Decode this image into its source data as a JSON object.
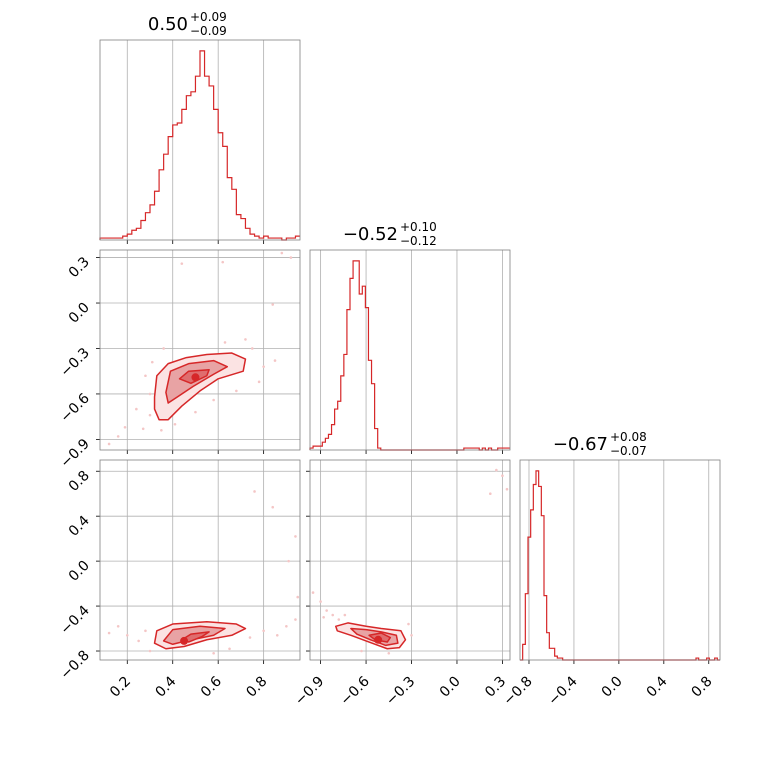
{
  "colors": {
    "main": "#d62728",
    "fill": "#e8a3a4",
    "light": "#f4c6c6",
    "grid": "#b0b0b0",
    "frame": "#808080"
  },
  "chart_data": {
    "type": "corner",
    "parameters": [
      {
        "title_value": "0.50",
        "title_plus": "+0.09",
        "title_minus": "−0.09",
        "range": [
          0.08,
          0.96
        ],
        "ticks": [
          0.2,
          0.4,
          0.6,
          0.8
        ],
        "tick_labels": [
          "0.2",
          "0.4",
          "0.6",
          "0.8"
        ],
        "hist_x": [
          0.08,
          0.96
        ],
        "hist": [
          0.01,
          0.01,
          0.01,
          0.01,
          0.01,
          0.02,
          0.03,
          0.05,
          0.06,
          0.1,
          0.14,
          0.18,
          0.25,
          0.36,
          0.44,
          0.53,
          0.59,
          0.6,
          0.67,
          0.74,
          0.76,
          0.84,
          0.97,
          0.84,
          0.79,
          0.67,
          0.55,
          0.48,
          0.32,
          0.26,
          0.13,
          0.11,
          0.06,
          0.03,
          0.02,
          0.01,
          0.02,
          0.01,
          0.01,
          0.01,
          0.0,
          0.01,
          0.01,
          0.02
        ]
      },
      {
        "title_value": "−0.52",
        "title_plus": "+0.10",
        "title_minus": "−0.12",
        "range": [
          -0.97,
          0.35
        ],
        "ticks": [
          -0.9,
          -0.6,
          -0.3,
          0.0,
          0.3
        ],
        "tick_labels": [
          "−0.9",
          "−0.6",
          "−0.3",
          "0.0",
          "0.3"
        ],
        "hist_x": [
          -0.97,
          0.35
        ],
        "hist": [
          0.01,
          0.02,
          0.02,
          0.02,
          0.04,
          0.06,
          0.08,
          0.13,
          0.21,
          0.25,
          0.38,
          0.49,
          0.72,
          0.88,
          0.97,
          0.97,
          0.8,
          0.84,
          0.73,
          0.46,
          0.34,
          0.11,
          0.01,
          0.0,
          0.0,
          0.0,
          0.0,
          0.0,
          0.0,
          0.0,
          0.0,
          0.0,
          0.0,
          0.0,
          0.0,
          0.0,
          0.0,
          0.0,
          0.0,
          0.0,
          0.0,
          0.0,
          0.0,
          0.0,
          0.0,
          0.0,
          0.0,
          0.0,
          0.0,
          0.0,
          0.01,
          0.01,
          0.01,
          0.01,
          0.01,
          0.0,
          0.01,
          0.0,
          0.01,
          0.0,
          0.0,
          0.01,
          0.01,
          0.01,
          0.01
        ]
      },
      {
        "title_value": "−0.67",
        "title_plus": "+0.08",
        "title_minus": "−0.07",
        "range": [
          -0.88,
          0.9
        ],
        "ticks": [
          -0.8,
          -0.4,
          0.0,
          0.4,
          0.8
        ],
        "tick_labels": [
          "−0.8",
          "−0.4",
          "0.0",
          "0.4",
          "0.8"
        ],
        "hist_x": [
          -0.88,
          0.9
        ],
        "hist": [
          0.0,
          0.08,
          0.34,
          0.63,
          0.77,
          0.9,
          0.97,
          0.89,
          0.74,
          0.33,
          0.14,
          0.06,
          0.06,
          0.02,
          0.01,
          0.01,
          0.0,
          0.0,
          0.0,
          0.0,
          0.0,
          0.0,
          0.0,
          0.0,
          0.0,
          0.0,
          0.0,
          0.0,
          0.0,
          0.0,
          0.0,
          0.0,
          0.0,
          0.0,
          0.0,
          0.0,
          0.0,
          0.0,
          0.0,
          0.0,
          0.0,
          0.0,
          0.0,
          0.0,
          0.0,
          0.0,
          0.0,
          0.0,
          0.0,
          0.0,
          0.0,
          0.0,
          0.0,
          0.0,
          0.0,
          0.0,
          0.0,
          0.0,
          0.0,
          0.0,
          0.0,
          0.0,
          0.0,
          0.0,
          0.0,
          0.0,
          0.01,
          0.0,
          0.0,
          0.0,
          0.01,
          0.0,
          0.0,
          0.01,
          0.0
        ]
      }
    ],
    "pairs": [
      {
        "x_param": 0,
        "y_param": 1,
        "y_ticks": [
          -0.9,
          -0.6,
          -0.3,
          0.0,
          0.3
        ],
        "y_tick_labels": [
          "−0.9",
          "−0.6",
          "−0.3",
          "0.0",
          "0.3"
        ],
        "outer_contour": [
          [
            0.32,
            -0.62
          ],
          [
            0.33,
            -0.48
          ],
          [
            0.38,
            -0.4
          ],
          [
            0.46,
            -0.36
          ],
          [
            0.55,
            -0.34
          ],
          [
            0.66,
            -0.33
          ],
          [
            0.72,
            -0.37
          ],
          [
            0.71,
            -0.45
          ],
          [
            0.6,
            -0.5
          ],
          [
            0.52,
            -0.58
          ],
          [
            0.44,
            -0.68
          ],
          [
            0.38,
            -0.77
          ],
          [
            0.34,
            -0.77
          ],
          [
            0.32,
            -0.7
          ]
        ],
        "mid_contour": [
          [
            0.37,
            -0.59
          ],
          [
            0.39,
            -0.45
          ],
          [
            0.47,
            -0.4
          ],
          [
            0.58,
            -0.38
          ],
          [
            0.64,
            -0.42
          ],
          [
            0.58,
            -0.47
          ],
          [
            0.49,
            -0.55
          ],
          [
            0.42,
            -0.62
          ],
          [
            0.38,
            -0.66
          ]
        ],
        "inner_contour": [
          [
            0.43,
            -0.5
          ],
          [
            0.47,
            -0.45
          ],
          [
            0.56,
            -0.44
          ],
          [
            0.55,
            -0.48
          ],
          [
            0.48,
            -0.53
          ]
        ],
        "peak": [
          0.5,
          -0.49
        ],
        "points": [
          [
            0.16,
            -0.88
          ],
          [
            0.12,
            -0.93
          ],
          [
            0.27,
            -0.83
          ],
          [
            0.24,
            -0.7
          ],
          [
            0.19,
            -0.82
          ],
          [
            0.3,
            -0.74
          ],
          [
            0.35,
            -0.84
          ],
          [
            0.41,
            -0.8
          ],
          [
            0.75,
            -0.3
          ],
          [
            0.8,
            -0.42
          ],
          [
            0.85,
            -0.38
          ],
          [
            0.72,
            -0.24
          ],
          [
            0.63,
            -0.26
          ],
          [
            0.44,
            0.26
          ],
          [
            0.62,
            0.27
          ],
          [
            0.84,
            -0.01
          ],
          [
            0.88,
            0.33
          ],
          [
            0.92,
            0.3
          ],
          [
            0.3,
            -0.6
          ],
          [
            0.28,
            -0.48
          ],
          [
            0.36,
            -0.3
          ],
          [
            0.78,
            -0.52
          ],
          [
            0.68,
            -0.58
          ],
          [
            0.58,
            -0.64
          ],
          [
            0.5,
            -0.72
          ],
          [
            0.31,
            -0.39
          ]
        ]
      },
      {
        "x_param": 0,
        "y_param": 2,
        "y_ticks": [
          -0.8,
          -0.4,
          0.0,
          0.4,
          0.8
        ],
        "y_tick_labels": [
          "−0.8",
          "−0.4",
          "0.0",
          "0.4",
          "0.8"
        ],
        "outer_contour": [
          [
            0.32,
            -0.73
          ],
          [
            0.33,
            -0.62
          ],
          [
            0.4,
            -0.56
          ],
          [
            0.55,
            -0.54
          ],
          [
            0.68,
            -0.56
          ],
          [
            0.72,
            -0.6
          ],
          [
            0.66,
            -0.66
          ],
          [
            0.55,
            -0.7
          ],
          [
            0.45,
            -0.76
          ],
          [
            0.37,
            -0.78
          ]
        ],
        "mid_contour": [
          [
            0.36,
            -0.71
          ],
          [
            0.4,
            -0.61
          ],
          [
            0.52,
            -0.58
          ],
          [
            0.63,
            -0.6
          ],
          [
            0.58,
            -0.66
          ],
          [
            0.46,
            -0.71
          ],
          [
            0.4,
            -0.74
          ]
        ],
        "inner_contour": [
          [
            0.44,
            -0.7
          ],
          [
            0.48,
            -0.65
          ],
          [
            0.56,
            -0.63
          ],
          [
            0.53,
            -0.67
          ],
          [
            0.47,
            -0.72
          ]
        ],
        "peak": [
          0.45,
          -0.71
        ],
        "points": [
          [
            0.12,
            -0.64
          ],
          [
            0.16,
            -0.58
          ],
          [
            0.2,
            -0.66
          ],
          [
            0.25,
            -0.71
          ],
          [
            0.28,
            -0.62
          ],
          [
            0.3,
            -0.8
          ],
          [
            0.74,
            -0.68
          ],
          [
            0.8,
            -0.62
          ],
          [
            0.86,
            -0.66
          ],
          [
            0.9,
            -0.58
          ],
          [
            0.94,
            -0.52
          ],
          [
            0.95,
            -0.32
          ],
          [
            0.76,
            0.62
          ],
          [
            0.84,
            0.48
          ],
          [
            0.94,
            0.22
          ],
          [
            0.91,
            0.0
          ],
          [
            0.58,
            -0.82
          ],
          [
            0.65,
            -0.78
          ]
        ]
      },
      {
        "x_param": 1,
        "y_param": 2,
        "outer_contour": [
          [
            -0.8,
            -0.58
          ],
          [
            -0.72,
            -0.55
          ],
          [
            -0.6,
            -0.58
          ],
          [
            -0.5,
            -0.6
          ],
          [
            -0.37,
            -0.62
          ],
          [
            -0.34,
            -0.7
          ],
          [
            -0.38,
            -0.77
          ],
          [
            -0.46,
            -0.78
          ],
          [
            -0.58,
            -0.72
          ],
          [
            -0.7,
            -0.66
          ],
          [
            -0.79,
            -0.62
          ]
        ],
        "mid_contour": [
          [
            -0.7,
            -0.6
          ],
          [
            -0.6,
            -0.61
          ],
          [
            -0.5,
            -0.63
          ],
          [
            -0.4,
            -0.66
          ],
          [
            -0.39,
            -0.73
          ],
          [
            -0.47,
            -0.75
          ],
          [
            -0.57,
            -0.7
          ],
          [
            -0.66,
            -0.65
          ]
        ],
        "inner_contour": [
          [
            -0.58,
            -0.66
          ],
          [
            -0.5,
            -0.64
          ],
          [
            -0.44,
            -0.68
          ],
          [
            -0.46,
            -0.72
          ],
          [
            -0.54,
            -0.7
          ]
        ],
        "peak": [
          -0.52,
          -0.7
        ],
        "points": [
          [
            -0.95,
            -0.28
          ],
          [
            -0.9,
            -0.36
          ],
          [
            -0.86,
            -0.44
          ],
          [
            -0.82,
            -0.48
          ],
          [
            -0.78,
            -0.52
          ],
          [
            -0.88,
            -0.5
          ],
          [
            -0.74,
            -0.48
          ],
          [
            -0.32,
            -0.56
          ],
          [
            -0.3,
            -0.66
          ],
          [
            0.26,
            0.81
          ],
          [
            0.22,
            0.6
          ],
          [
            0.3,
            0.76
          ],
          [
            0.33,
            0.64
          ],
          [
            -0.63,
            -0.8
          ],
          [
            -0.45,
            -0.82
          ]
        ]
      }
    ]
  }
}
